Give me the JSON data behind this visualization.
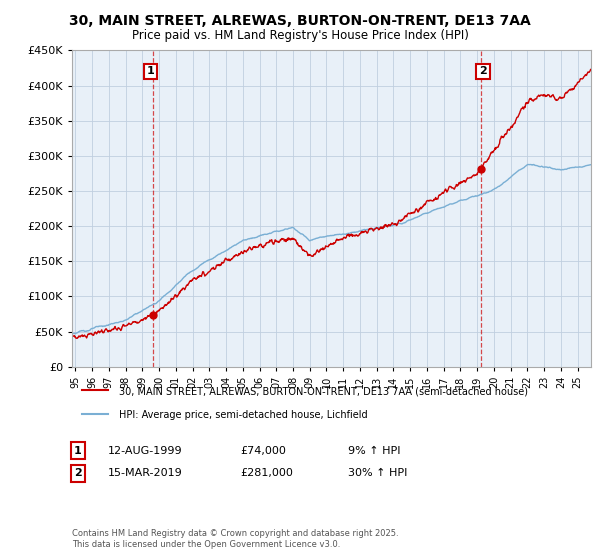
{
  "title": "30, MAIN STREET, ALREWAS, BURTON-ON-TRENT, DE13 7AA",
  "subtitle": "Price paid vs. HM Land Registry's House Price Index (HPI)",
  "legend_line1": "30, MAIN STREET, ALREWAS, BURTON-ON-TRENT, DE13 7AA (semi-detached house)",
  "legend_line2": "HPI: Average price, semi-detached house, Lichfield",
  "annotation1_date": "12-AUG-1999",
  "annotation1_price": "£74,000",
  "annotation1_hpi": "9% ↑ HPI",
  "annotation2_date": "15-MAR-2019",
  "annotation2_price": "£281,000",
  "annotation2_hpi": "30% ↑ HPI",
  "copyright": "Contains HM Land Registry data © Crown copyright and database right 2025.\nThis data is licensed under the Open Government Licence v3.0.",
  "sale1_x": 1999.62,
  "sale1_y": 74000,
  "sale2_x": 2019.2,
  "sale2_y": 281000,
  "ylim": [
    0,
    450000
  ],
  "yticks": [
    0,
    50000,
    100000,
    150000,
    200000,
    250000,
    300000,
    350000,
    400000,
    450000
  ],
  "xlim_start": 1994.8,
  "xlim_end": 2025.8,
  "xticks": [
    1995,
    1996,
    1997,
    1998,
    1999,
    2000,
    2001,
    2002,
    2003,
    2004,
    2005,
    2006,
    2007,
    2008,
    2009,
    2010,
    2011,
    2012,
    2013,
    2014,
    2015,
    2016,
    2017,
    2018,
    2019,
    2020,
    2021,
    2022,
    2023,
    2024,
    2025
  ],
  "price_color": "#cc0000",
  "hpi_color": "#7aafd4",
  "bg_chart": "#e8f0f8",
  "background_color": "#ffffff",
  "grid_color": "#c0cfe0"
}
